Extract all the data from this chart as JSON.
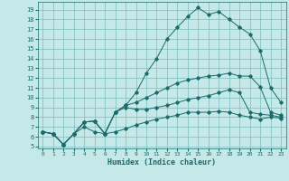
{
  "xlabel": "Humidex (Indice chaleur)",
  "background_color": "#c5e8e8",
  "grid_color": "#7bbcbc",
  "line_color": "#1a6b6b",
  "xlim": [
    -0.5,
    23.5
  ],
  "ylim": [
    4.8,
    19.8
  ],
  "yticks": [
    5,
    6,
    7,
    8,
    9,
    10,
    11,
    12,
    13,
    14,
    15,
    16,
    17,
    18,
    19
  ],
  "xticks": [
    0,
    1,
    2,
    3,
    4,
    5,
    6,
    7,
    8,
    9,
    10,
    11,
    12,
    13,
    14,
    15,
    16,
    17,
    18,
    19,
    20,
    21,
    22,
    23
  ],
  "series1_x": [
    0,
    1,
    2,
    3,
    4,
    5,
    6,
    7,
    8,
    9,
    10,
    11,
    12,
    13,
    14,
    15,
    16,
    17,
    18,
    19,
    20,
    21,
    22,
    23
  ],
  "series1_y": [
    6.5,
    6.3,
    5.2,
    6.3,
    7.5,
    7.6,
    6.3,
    8.5,
    9.2,
    10.5,
    12.5,
    14.0,
    16.0,
    17.2,
    18.3,
    19.2,
    18.5,
    18.8,
    18.0,
    17.2,
    16.5,
    14.8,
    11.0,
    9.5
  ],
  "series2_x": [
    0,
    1,
    2,
    3,
    4,
    5,
    6,
    7,
    8,
    9,
    10,
    11,
    12,
    13,
    14,
    15,
    16,
    17,
    18,
    19,
    20,
    21,
    22,
    23
  ],
  "series2_y": [
    6.5,
    6.3,
    5.2,
    6.3,
    7.5,
    7.6,
    6.3,
    8.5,
    9.2,
    9.5,
    10.0,
    10.5,
    11.0,
    11.5,
    11.8,
    12.0,
    12.2,
    12.3,
    12.5,
    12.2,
    12.2,
    11.1,
    8.5,
    8.2
  ],
  "series3_x": [
    0,
    1,
    2,
    3,
    4,
    5,
    6,
    7,
    8,
    9,
    10,
    11,
    12,
    13,
    14,
    15,
    16,
    17,
    18,
    19,
    20,
    21,
    22,
    23
  ],
  "series3_y": [
    6.5,
    6.3,
    5.2,
    6.3,
    7.5,
    7.6,
    6.3,
    8.5,
    9.0,
    8.8,
    8.8,
    9.0,
    9.2,
    9.5,
    9.8,
    10.0,
    10.2,
    10.5,
    10.8,
    10.5,
    8.5,
    8.3,
    8.2,
    8.0
  ],
  "series4_x": [
    0,
    1,
    2,
    3,
    4,
    5,
    6,
    7,
    8,
    9,
    10,
    11,
    12,
    13,
    14,
    15,
    16,
    17,
    18,
    19,
    20,
    21,
    22,
    23
  ],
  "series4_y": [
    6.5,
    6.3,
    5.2,
    6.3,
    7.0,
    6.5,
    6.3,
    6.5,
    6.8,
    7.2,
    7.5,
    7.8,
    8.0,
    8.2,
    8.5,
    8.5,
    8.5,
    8.6,
    8.5,
    8.2,
    8.0,
    7.8,
    8.0,
    7.9
  ]
}
